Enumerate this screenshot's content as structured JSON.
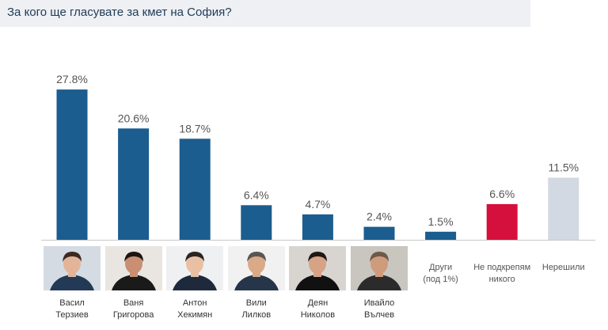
{
  "header": {
    "title": "За кого ще гласувате за кмет на София?"
  },
  "colors": {
    "bar": "#1c5d8f",
    "highlight": "#d6103c",
    "undecided": "#d3d9e2",
    "title_bg": "#eef0f3",
    "axis": "#c8c8c8"
  },
  "chart_data": {
    "type": "bar",
    "title": "За кого ще гласувате за кмет на София?",
    "xlabel": "",
    "ylabel": "",
    "ylim": [
      0,
      30
    ],
    "unit": "%",
    "categories": [
      {
        "name": "Васил Терзиев",
        "lines": [
          "Васил",
          "Терзиев"
        ],
        "photo": true,
        "color": "#1c5d8f"
      },
      {
        "name": "Ваня Григорова",
        "lines": [
          "Ваня",
          "Григорова"
        ],
        "photo": true,
        "color": "#1c5d8f"
      },
      {
        "name": "Антон Хекимян",
        "lines": [
          "Антон",
          "Хекимян"
        ],
        "photo": true,
        "color": "#1c5d8f"
      },
      {
        "name": "Вили Лилков",
        "lines": [
          "Вили",
          "Лилков"
        ],
        "photo": true,
        "color": "#1c5d8f"
      },
      {
        "name": "Деян Николов",
        "lines": [
          "Деян",
          "Николов"
        ],
        "photo": true,
        "color": "#1c5d8f"
      },
      {
        "name": "Ивайло Вълчев",
        "lines": [
          "Ивайло",
          "Вълчев"
        ],
        "photo": true,
        "color": "#1c5d8f"
      },
      {
        "name": "Други (под 1%)",
        "lines": [
          "Други",
          "(под 1%)"
        ],
        "photo": false,
        "color": "#1c5d8f"
      },
      {
        "name": "Не подкрепям никого",
        "lines": [
          "Не подкрепям",
          "никого"
        ],
        "photo": false,
        "color": "#d6103c"
      },
      {
        "name": "Нерешили",
        "lines": [
          "Нерешили"
        ],
        "photo": false,
        "color": "#d3d9e2"
      }
    ],
    "values": [
      27.8,
      20.6,
      18.7,
      6.4,
      4.7,
      2.4,
      1.5,
      6.6,
      11.5
    ],
    "labels": [
      "27.8%",
      "20.6%",
      "18.7%",
      "6.4%",
      "4.7%",
      "2.4%",
      "1.5%",
      "6.6%",
      "11.5%"
    ]
  }
}
